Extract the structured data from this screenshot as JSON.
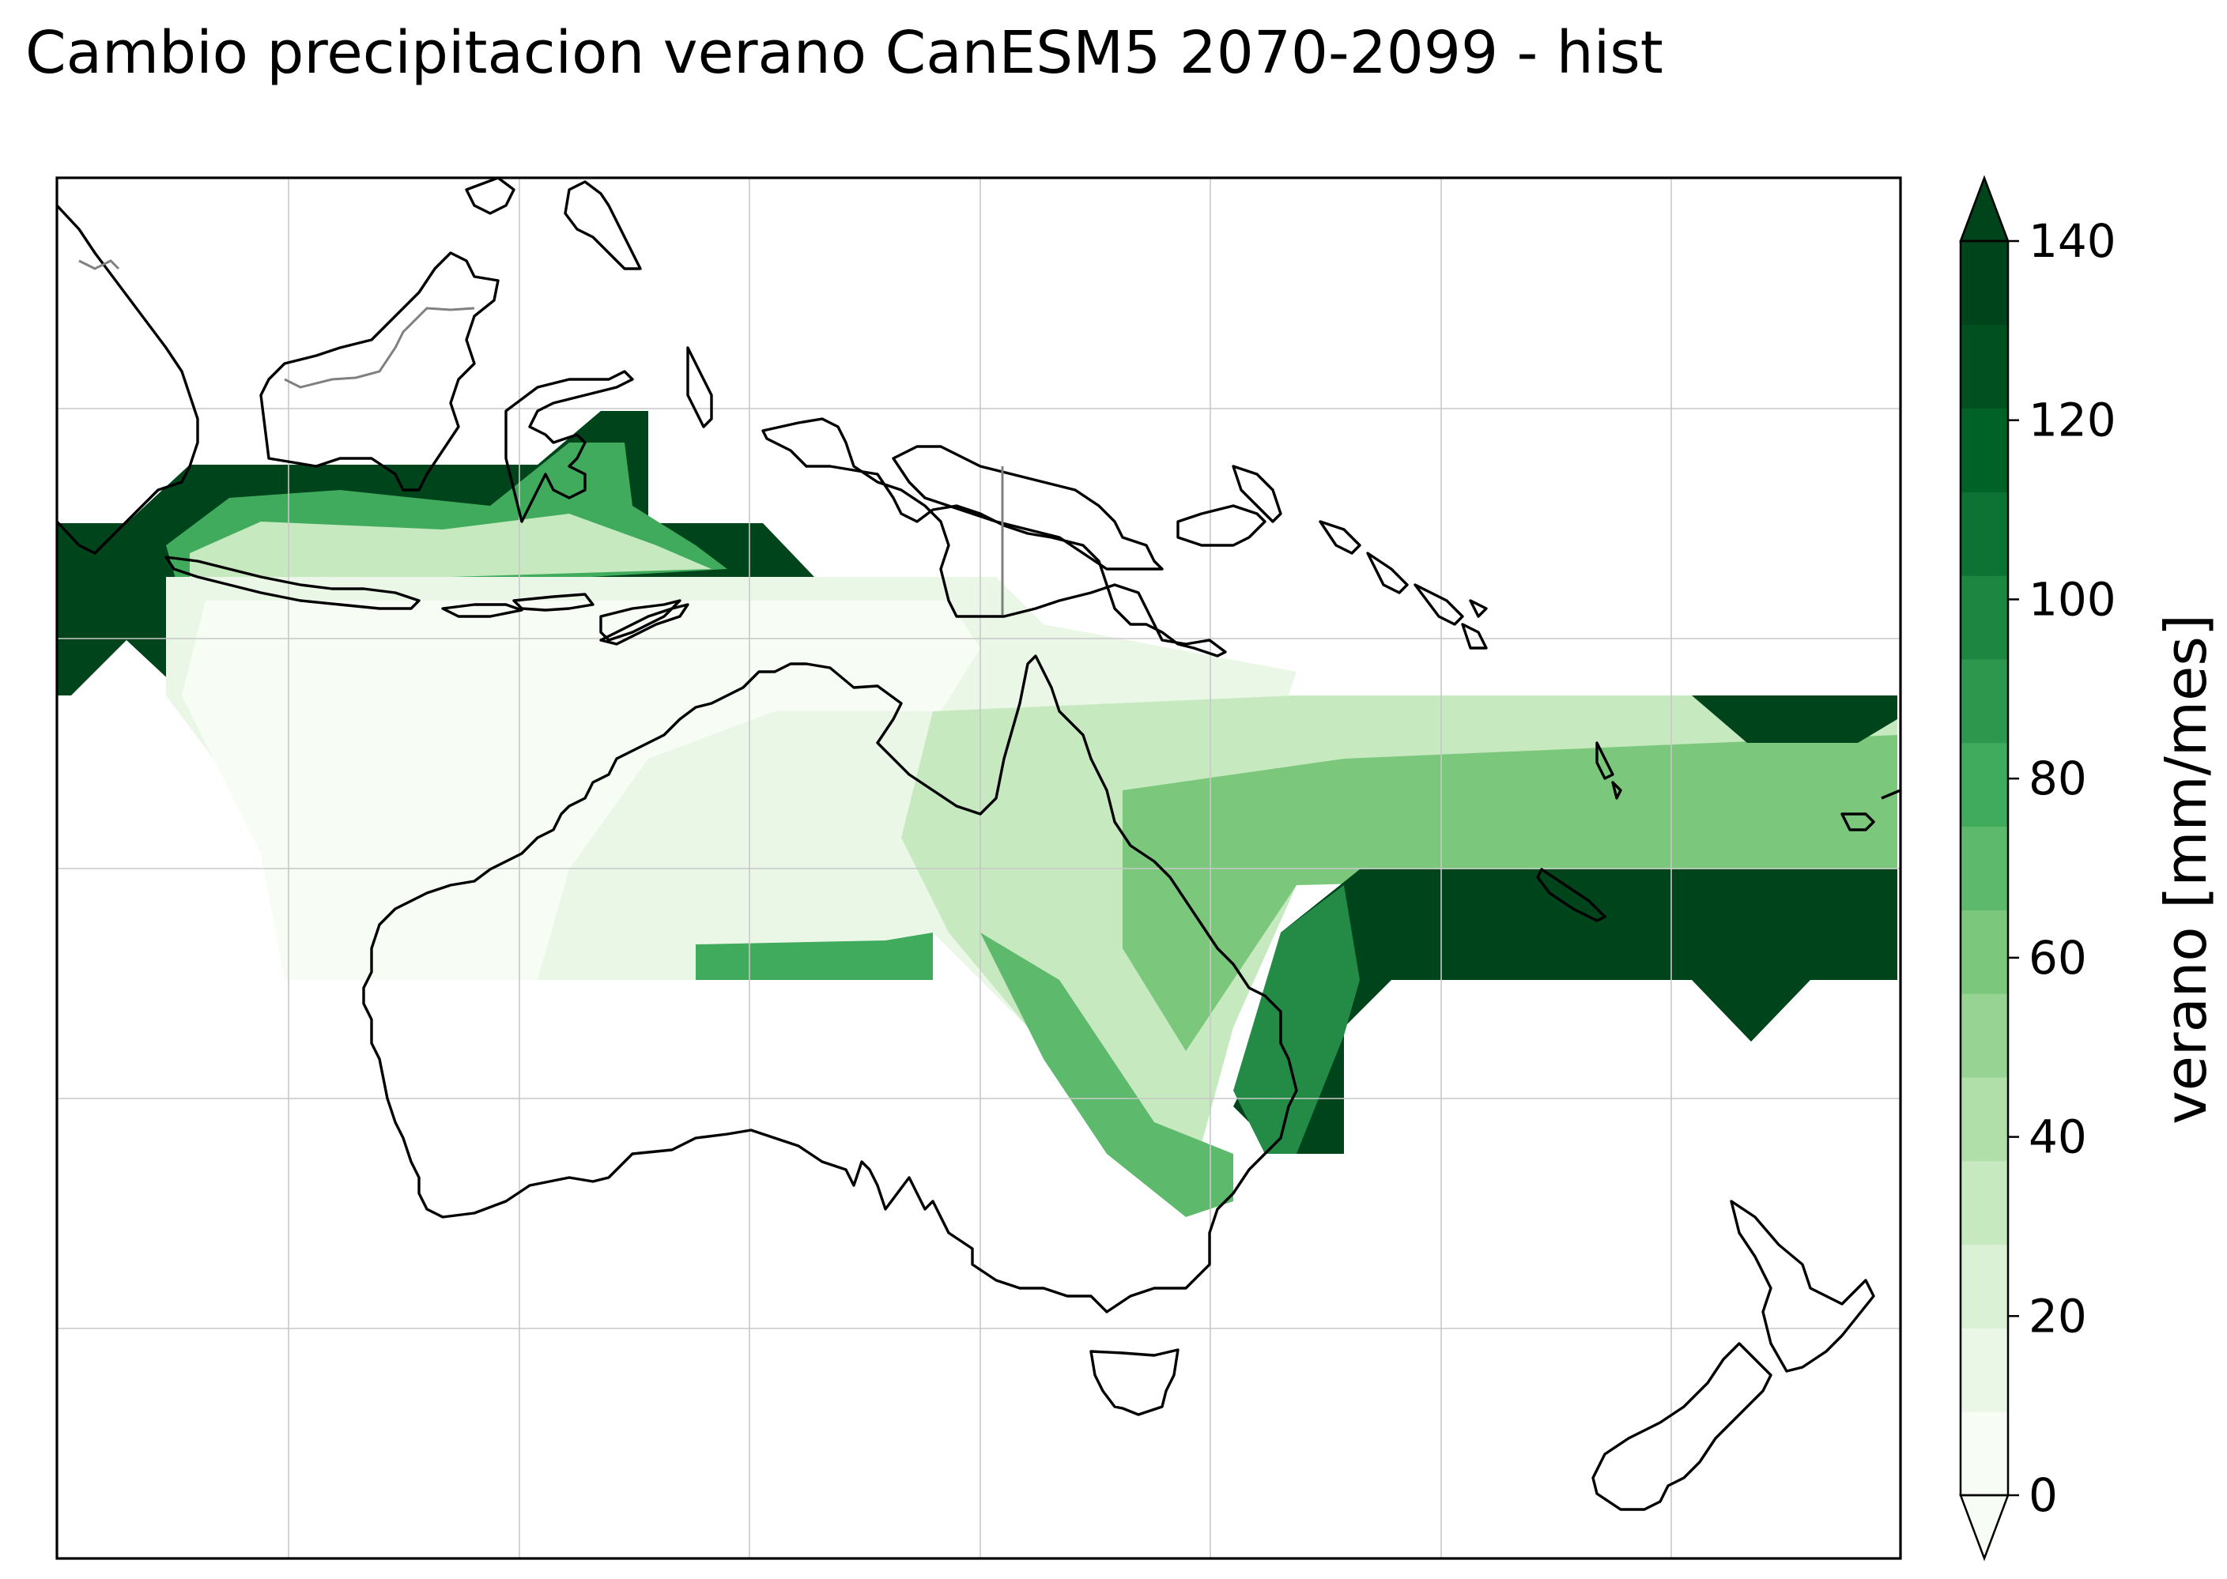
{
  "title": "Cambio precipitacion verano CanESM5 2070-2099 - hist",
  "colorbar": {
    "label": "verano [mm/mes]",
    "ticks": [
      "0",
      "20",
      "40",
      "60",
      "80",
      "100",
      "120",
      "140"
    ],
    "min": 0,
    "max": 140,
    "levels": 15,
    "extend": "both",
    "colors": [
      "#f7fcf5",
      "#eaf7e6",
      "#dbf1d5",
      "#c7e9c0",
      "#b0dfaa",
      "#97d494",
      "#7bc77c",
      "#5db96b",
      "#41ab5d",
      "#2e974e",
      "#1d8640",
      "#0c7334",
      "#006227",
      "#00511f",
      "#00441b"
    ],
    "under_color": "#f7fcf5",
    "over_color": "#00441b"
  },
  "map": {
    "region": "Australia, Indonesia, Papua New Guinea, New Zealand and SW Pacific",
    "colormap": "Greens",
    "gridlines": true,
    "bands": [
      {
        "name": "indonesia-high",
        "value": 140
      },
      {
        "name": "maritime-continent",
        "value": 60
      },
      {
        "name": "north-australia",
        "value": 5
      },
      {
        "name": "coral-sea",
        "value": 35
      },
      {
        "name": "east-coast",
        "value": 55
      },
      {
        "name": "tasman-pacific",
        "value": 80
      },
      {
        "name": "tasman-high",
        "value": 140
      }
    ]
  }
}
